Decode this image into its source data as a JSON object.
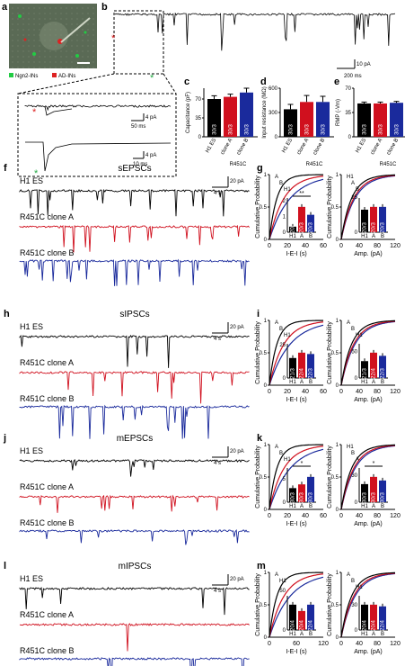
{
  "colors": {
    "h1": "#000000",
    "cloneA": "#d0101e",
    "cloneB": "#1a2a9c",
    "micro_bg": "#5a6a55",
    "ngn2": "#22cc44",
    "adin": "#dd2222"
  },
  "panels": {
    "a": {
      "letter": "a",
      "legend_green": "Ngn2-INs",
      "legend_red": "AD-INs"
    },
    "b": {
      "letter": "b",
      "scale_v": "10 pA",
      "scale_t": "200 ms",
      "inset1_v": "4 pA",
      "inset1_t": "50 ms",
      "inset2_v": "4 pA",
      "inset2_t": "10 ms",
      "star": "*"
    },
    "c": {
      "letter": "c",
      "ylabel": "Capacitance (pF)",
      "ticks": [
        "0",
        "35",
        "70"
      ],
      "values": [
        70,
        74,
        82
      ],
      "errors": [
        6,
        5,
        8
      ],
      "ymax": 90,
      "counts": [
        "30/3",
        "30/3",
        "30/3"
      ],
      "cats": [
        "H1 ES",
        "clone A",
        "clone B"
      ],
      "group": "R451C"
    },
    "d": {
      "letter": "d",
      "ylabel": "Input resistance (MΩ)",
      "ticks": [
        "0",
        "300",
        "600"
      ],
      "values": [
        340,
        430,
        430
      ],
      "errors": [
        60,
        80,
        70
      ],
      "ymax": 600,
      "counts": [
        "30/3",
        "30/3",
        "30/3"
      ],
      "cats": [
        "H1 ES",
        "clone A",
        "clone B"
      ],
      "group": "R451C"
    },
    "e": {
      "letter": "e",
      "ylabel": "RMP (-Vm)",
      "ticks": [
        "0",
        "35",
        "70"
      ],
      "values": [
        48,
        48,
        49
      ],
      "errors": [
        2,
        2,
        2
      ],
      "ymax": 70,
      "counts": [
        "30/3",
        "30/3",
        "30/3"
      ],
      "cats": [
        "H1 ES",
        "clone A",
        "clone B"
      ],
      "group": "R451C"
    }
  },
  "trace_sections": [
    {
      "letter": "f",
      "title": "sEPSCs",
      "label_h1": "H1 ES",
      "label_a": "R451C clone A",
      "label_b": "R451C clone B",
      "scale_v": "20 pA",
      "scale_t": "4 s"
    },
    {
      "letter": "h",
      "title": "sIPSCs",
      "label_h1": "H1 ES",
      "label_a": "R451C clone A",
      "label_b": "R451C clone B",
      "scale_v": "20 pA",
      "scale_t": "4 s"
    },
    {
      "letter": "j",
      "title": "mEPSCs",
      "label_h1": "H1 ES",
      "label_a": "R451C clone A",
      "label_b": "R451C clone B",
      "scale_v": "20 pA",
      "scale_t": "4 s"
    },
    {
      "letter": "l",
      "title": "mIPSCs",
      "label_h1": "H1 ES",
      "label_a": "R451C clone A",
      "label_b": "R451C clone B",
      "scale_v": "20 pA",
      "scale_t": "4 s"
    }
  ],
  "cdf_sections": [
    {
      "letter": "g",
      "ylabel": "Cumulative Probability",
      "yticks": [
        "0",
        "0.5",
        "1"
      ],
      "left": {
        "xlabel": "I-E-I (s)",
        "xticks": [
          "0",
          "20",
          "40",
          "60"
        ],
        "inset_ticks": [
          "0",
          "1",
          "2"
        ],
        "inset_values": [
          0.35,
          1.6,
          1.1
        ],
        "inset_counts": [
          "20/3",
          "20/3",
          "20/3"
        ],
        "sig": "**",
        "labels": [
          "A",
          "B",
          "H1"
        ],
        "inset_cats": [
          "H1",
          "A",
          "B"
        ]
      },
      "right": {
        "xlabel": "Amp. (pA)",
        "xticks": [
          "0",
          "40",
          "80",
          "120"
        ],
        "inset_ticks": [
          "0",
          "25"
        ],
        "inset_values": [
          16,
          18,
          18
        ],
        "inset_counts": [
          "20/3",
          "20/3",
          "20/3"
        ],
        "sig": "",
        "labels": [
          "H1",
          "A",
          "B"
        ],
        "inset_cats": [
          "H1",
          "A",
          "B"
        ]
      }
    },
    {
      "letter": "i",
      "ylabel": "Cumulative Probability",
      "yticks": [
        "0",
        "0.5",
        "1"
      ],
      "left": {
        "xlabel": "I-E-I (s)",
        "xticks": [
          "0",
          "20",
          "40",
          "60"
        ],
        "inset_ticks": [
          "0",
          "25"
        ],
        "inset_values": [
          15,
          19,
          18
        ],
        "inset_counts": [
          "21/3",
          "22/4",
          "22/3"
        ],
        "sig": "",
        "labels": [
          "A",
          "B",
          "H1"
        ],
        "inset_cats": [
          "H1",
          "A",
          "B"
        ]
      },
      "right": {
        "xlabel": "Amp. (pA)",
        "xticks": [
          "0",
          "40",
          "80",
          "120"
        ],
        "inset_ticks": [
          "0",
          "50"
        ],
        "inset_values": [
          32,
          48,
          42
        ],
        "inset_counts": [
          "21/3",
          "22/4",
          "22/3"
        ],
        "sig": "",
        "labels": [
          "A",
          "B",
          "H1"
        ],
        "inset_cats": [
          "H1",
          "A",
          "B"
        ]
      }
    },
    {
      "letter": "k",
      "ylabel": "Cumulative Probability",
      "yticks": [
        "0",
        "0.5",
        "1"
      ],
      "left": {
        "xlabel": "I-E-I (s)",
        "xticks": [
          "0",
          "20",
          "40",
          "60"
        ],
        "inset_ticks": [
          "0",
          "5"
        ],
        "inset_values": [
          3,
          3.8,
          5.4
        ],
        "inset_counts": [
          "30/3",
          "30/3",
          "30/3"
        ],
        "sig": "*",
        "labels": [
          "A",
          "B",
          "H1"
        ],
        "inset_cats": [
          "H1",
          "A",
          "B"
        ]
      },
      "right": {
        "xlabel": "Amp. (pA)",
        "xticks": [
          "0",
          "40",
          "80",
          "120"
        ],
        "inset_ticks": [
          "0",
          "30"
        ],
        "inset_values": [
          20,
          28,
          24
        ],
        "inset_counts": [
          "30/3",
          "30/3",
          "30/3"
        ],
        "sig": "*",
        "labels": [
          "H1",
          "B",
          "A"
        ],
        "inset_cats": [
          "H1",
          "A",
          "B"
        ]
      }
    },
    {
      "letter": "m",
      "ylabel": "Cumulative Probability",
      "yticks": [
        "0",
        "0.5",
        "1"
      ],
      "left": {
        "xlabel": "I-E-I (s)",
        "xticks": [
          "0",
          "60",
          "120"
        ],
        "inset_ticks": [
          "0",
          "50"
        ],
        "inset_values": [
          32,
          24,
          32
        ],
        "inset_counts": [
          "20/4",
          "20/4",
          "22/4"
        ],
        "sig": "",
        "labels": [
          "A",
          "H1"
        ],
        "inset_cats": [
          "H1",
          "A",
          "B"
        ]
      },
      "right": {
        "xlabel": "Amp. (pA)",
        "xticks": [
          "0",
          "40",
          "80",
          "120"
        ],
        "inset_ticks": [
          "0",
          "30"
        ],
        "inset_values": [
          30,
          30,
          28
        ],
        "inset_counts": [
          "20/4",
          "20/4",
          "22/4"
        ],
        "sig": "",
        "labels": [
          "A",
          "B",
          "H1"
        ],
        "inset_cats": [
          "H1",
          "A",
          "B"
        ]
      }
    }
  ]
}
